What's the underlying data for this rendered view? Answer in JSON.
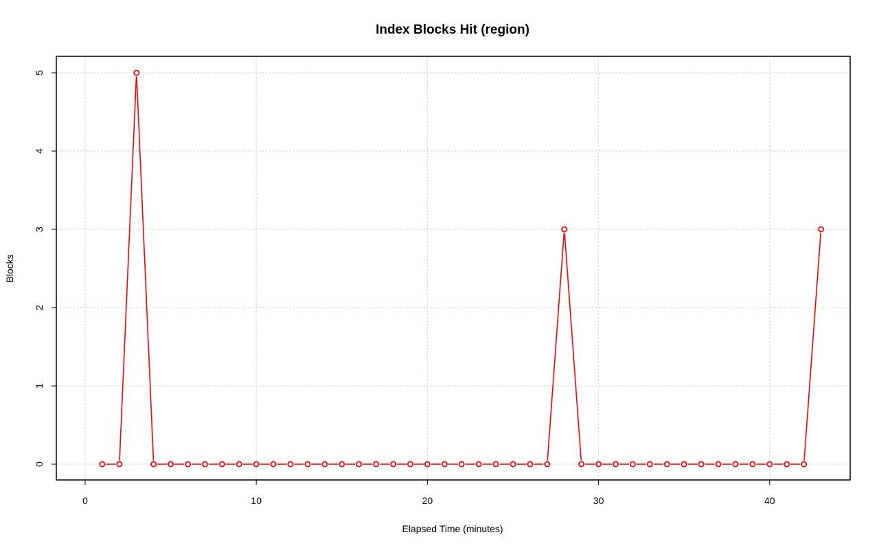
{
  "chart_data": {
    "type": "line",
    "title": "Index Blocks Hit (region)",
    "xlabel": "Elapsed Time (minutes)",
    "ylabel": "Blocks",
    "xlim": [
      0,
      45
    ],
    "ylim": [
      0,
      5
    ],
    "x_ticks": [
      0,
      10,
      20,
      30,
      40
    ],
    "y_ticks": [
      0,
      1,
      2,
      3,
      4,
      5
    ],
    "grid": true,
    "marker": "open-circle",
    "line_style": "solid",
    "series": [
      {
        "color": "#ff0000",
        "x": [
          1,
          2,
          3,
          4,
          5,
          6,
          7,
          8,
          9,
          10,
          11,
          12,
          13,
          14,
          15,
          16,
          17,
          18,
          19,
          20,
          21,
          22,
          23,
          24,
          25,
          26,
          27,
          28,
          29,
          30,
          31,
          32,
          33,
          34,
          35,
          36,
          37,
          38,
          39,
          40,
          41,
          42,
          43
        ],
        "values": [
          0,
          0,
          5,
          0,
          0,
          0,
          0,
          0,
          0,
          0,
          0,
          0,
          0,
          0,
          0,
          0,
          0,
          0,
          0,
          0,
          0,
          0,
          0,
          0,
          0,
          0,
          0,
          3,
          0,
          0,
          0,
          0,
          0,
          0,
          0,
          0,
          0,
          0,
          0,
          0,
          0,
          0,
          3
        ]
      }
    ]
  }
}
